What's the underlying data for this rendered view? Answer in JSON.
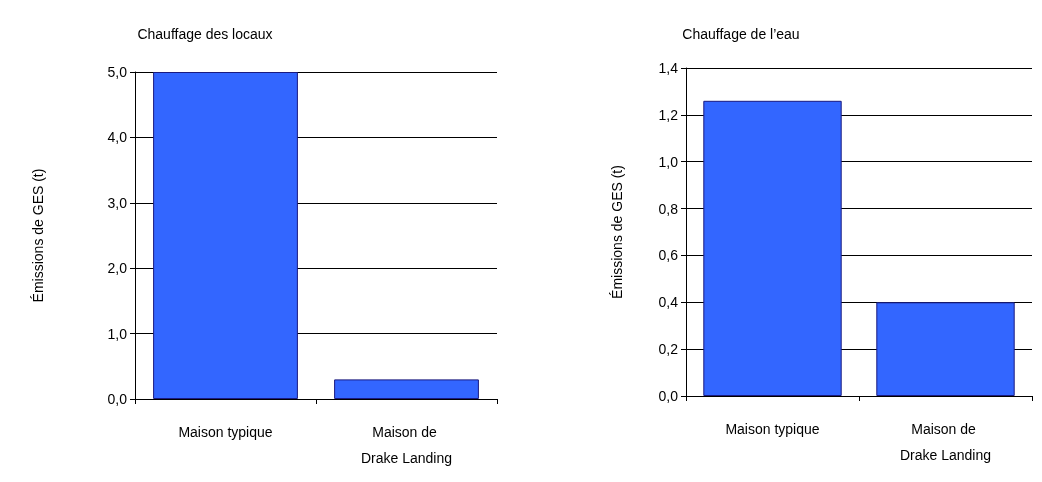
{
  "chart_data": [
    {
      "type": "bar",
      "title": "Chauffage des locaux",
      "ylabel": "Émissions de GES (t)",
      "categories": [
        "Maison typique",
        "Maison de Drake Landing"
      ],
      "values": [
        5.0,
        0.3
      ],
      "color": "#3366ff",
      "ylim": [
        0,
        5
      ],
      "yticks": [
        {
          "value": 0,
          "label": "0,0"
        },
        {
          "value": 1,
          "label": "1,0"
        },
        {
          "value": 2,
          "label": "2,0"
        },
        {
          "value": 3,
          "label": "3,0"
        },
        {
          "value": 4,
          "label": "4,0"
        },
        {
          "value": 5,
          "label": "5,0"
        }
      ],
      "grid": "y"
    },
    {
      "type": "bar",
      "title": "Chauffage de l’eau",
      "ylabel": "Émissions de GES (t)",
      "categories": [
        "Maison typique",
        "Maison de Drake Landing"
      ],
      "values": [
        1.26,
        0.4
      ],
      "color": "#3366ff",
      "ylim": [
        0,
        1.4
      ],
      "yticks": [
        {
          "value": 0,
          "label": "0,0"
        },
        {
          "value": 0.2,
          "label": "0,2"
        },
        {
          "value": 0.4,
          "label": "0,4"
        },
        {
          "value": 0.6,
          "label": "0,6"
        },
        {
          "value": 0.8,
          "label": "0,8"
        },
        {
          "value": 1,
          "label": "1,0"
        },
        {
          "value": 1.2,
          "label": "1,2"
        },
        {
          "value": 1.4,
          "label": "1,4"
        }
      ],
      "grid": "y"
    }
  ]
}
